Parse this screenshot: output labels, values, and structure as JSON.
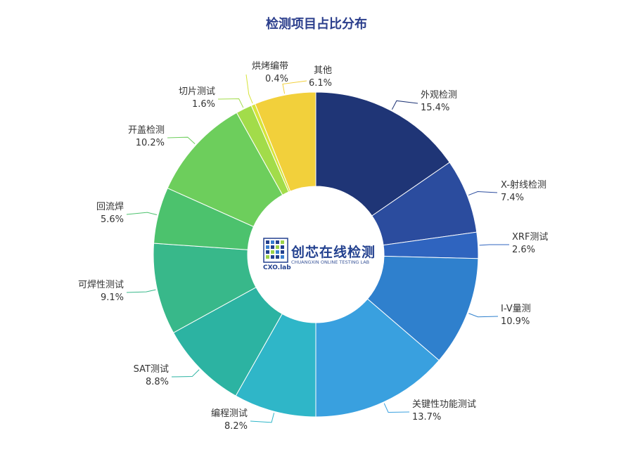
{
  "chart_data": {
    "type": "pie",
    "title": "检测项目占比分布",
    "slices": [
      {
        "name": "外观检测",
        "value": 15.4,
        "label": "15.4%",
        "color": "#1f3576"
      },
      {
        "name": "X-射线检测",
        "value": 7.4,
        "label": "7.4%",
        "color": "#2b4c9e"
      },
      {
        "name": "XRF测试",
        "value": 2.6,
        "label": "2.6%",
        "color": "#2f64bf"
      },
      {
        "name": "I-V量测",
        "value": 10.9,
        "label": "10.9%",
        "color": "#2f80cd"
      },
      {
        "name": "关键性功能测试",
        "value": 13.7,
        "label": "13.7%",
        "color": "#39a0df"
      },
      {
        "name": "编程测试",
        "value": 8.2,
        "label": "8.2%",
        "color": "#2fb6c8"
      },
      {
        "name": "SAT测试",
        "value": 8.8,
        "label": "8.8%",
        "color": "#2cb3a2"
      },
      {
        "name": "可焊性测试",
        "value": 9.1,
        "label": "9.1%",
        "color": "#38b88a"
      },
      {
        "name": "回流焊",
        "value": 5.6,
        "label": "5.6%",
        "color": "#4cc26d"
      },
      {
        "name": "开盖检测",
        "value": 10.2,
        "label": "10.2%",
        "color": "#6dce5c"
      },
      {
        "name": "切片测试",
        "value": 1.6,
        "label": "1.6%",
        "color": "#a2dc4a"
      },
      {
        "name": "烘烤编带",
        "value": 0.4,
        "label": "0.4%",
        "color": "#d7e43a"
      },
      {
        "name": "其他",
        "value": 6.1,
        "label": "6.1%",
        "color": "#f2d03b"
      }
    ]
  },
  "logo": {
    "main": "创芯在线检测",
    "sub": "CHUANGXIN ONLINE TESTING LAB",
    "brand": "CXO.lab"
  }
}
